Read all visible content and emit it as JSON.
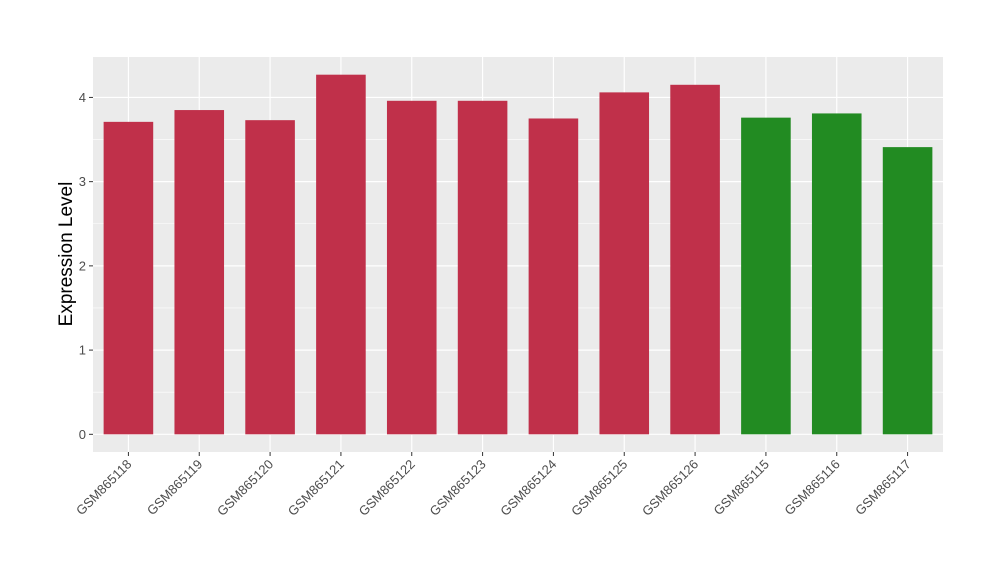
{
  "chart_data": {
    "type": "bar",
    "categories": [
      "GSM865118",
      "GSM865119",
      "GSM865120",
      "GSM865121",
      "GSM865122",
      "GSM865123",
      "GSM865124",
      "GSM865125",
      "GSM865126",
      "GSM865115",
      "GSM865116",
      "GSM865117"
    ],
    "values": [
      3.71,
      3.85,
      3.73,
      4.27,
      3.96,
      3.96,
      3.75,
      4.06,
      4.15,
      3.76,
      3.81,
      3.41
    ],
    "bar_colors": [
      "#c0304a",
      "#c0304a",
      "#c0304a",
      "#c0304a",
      "#c0304a",
      "#c0304a",
      "#c0304a",
      "#c0304a",
      "#c0304a",
      "#228b22",
      "#228b22",
      "#228b22"
    ],
    "title": "",
    "xlabel": "",
    "ylabel": "Expression Level",
    "ylim": [
      -0.21,
      4.48
    ],
    "yticks": [
      0,
      1,
      2,
      3,
      4
    ],
    "grid": true,
    "panel_background": "#ebebeb",
    "grid_color": "#ffffff"
  }
}
